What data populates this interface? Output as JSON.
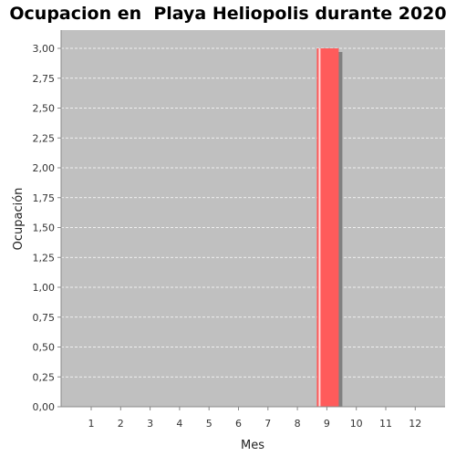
{
  "chart_data": {
    "type": "bar",
    "title": "Ocupacion en  Playa Heliopolis durante 2020",
    "xlabel": "Mes",
    "ylabel": "Ocupación",
    "categories": [
      "1",
      "2",
      "3",
      "4",
      "5",
      "6",
      "7",
      "8",
      "9",
      "10",
      "11",
      "12"
    ],
    "values": [
      0,
      0,
      0,
      0,
      0,
      0,
      0,
      0,
      3,
      0,
      0,
      0
    ],
    "ylim": [
      0,
      3.0
    ],
    "yticks": [
      "0,00",
      "0,25",
      "0,50",
      "0,75",
      "1,00",
      "1,25",
      "1,50",
      "1,75",
      "2,00",
      "2,25",
      "2,50",
      "2,75",
      "3,00"
    ],
    "grid": true,
    "legend": "none",
    "colors": {
      "bar": "#ff5b5b",
      "plot_background": "#c0c0c0",
      "gridline": "#ffffff"
    }
  }
}
